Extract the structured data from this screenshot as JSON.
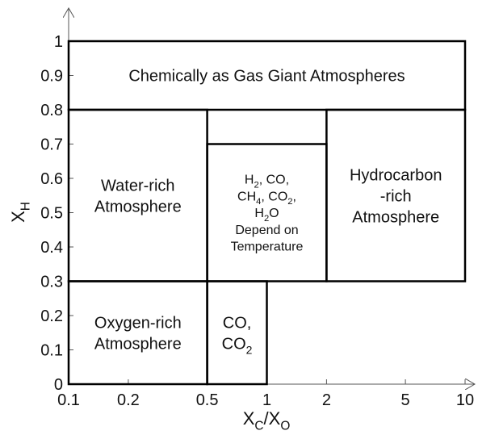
{
  "chart_data": {
    "type": "region",
    "x_label": [
      {
        "text": "X"
      },
      {
        "text": "C",
        "sub": true
      },
      {
        "text": "/X"
      },
      {
        "text": "O",
        "sub": true
      }
    ],
    "y_label": [
      {
        "text": "X"
      },
      {
        "text": "H",
        "sub": true
      }
    ],
    "xscale": "log",
    "xlim": [
      0.1,
      10
    ],
    "xticks": [
      0.1,
      0.2,
      0.5,
      1,
      2,
      5,
      10
    ],
    "ylim": [
      0,
      1
    ],
    "yticks": [
      0,
      0.1,
      0.2,
      0.3,
      0.4,
      0.5,
      0.6,
      0.7,
      0.8,
      0.9,
      1
    ],
    "regions": [
      {
        "x": [
          0.1,
          10
        ],
        "y": [
          0.8,
          1
        ],
        "size": 20,
        "lines": [
          [
            {
              "text": "Chemically as Gas Giant Atmospheres"
            }
          ]
        ]
      },
      {
        "x": [
          0.1,
          0.5
        ],
        "y": [
          0.3,
          0.8
        ],
        "size": 20,
        "lines": [
          [
            {
              "text": "Water-rich"
            }
          ],
          [
            {
              "text": "Atmosphere"
            }
          ]
        ]
      },
      {
        "x": [
          0.5,
          2
        ],
        "y": [
          0.3,
          0.7
        ],
        "size": 16,
        "lines": [
          [
            {
              "text": "H"
            },
            {
              "text": "2",
              "sub": true
            },
            {
              "text": ", CO,"
            }
          ],
          [
            {
              "text": "CH"
            },
            {
              "text": "4",
              "sub": true
            },
            {
              "text": ", CO"
            },
            {
              "text": "2",
              "sub": true
            },
            {
              "text": ","
            }
          ],
          [
            {
              "text": "H"
            },
            {
              "text": "2",
              "sub": true
            },
            {
              "text": "O"
            }
          ],
          [
            {
              "text": "Depend on"
            }
          ],
          [
            {
              "text": "Temperature"
            }
          ]
        ]
      },
      {
        "x": [
          2,
          10
        ],
        "y": [
          0.3,
          0.8
        ],
        "size": 20,
        "lines": [
          [
            {
              "text": "Hydrocarbon"
            }
          ],
          [
            {
              "text": "-rich"
            }
          ],
          [
            {
              "text": "Atmosphere"
            }
          ]
        ]
      },
      {
        "x": [
          0.1,
          0.5
        ],
        "y": [
          0,
          0.3
        ],
        "size": 20,
        "lines": [
          [
            {
              "text": "Oxygen-rich"
            }
          ],
          [
            {
              "text": "Atmosphere"
            }
          ]
        ]
      },
      {
        "x": [
          0.5,
          1
        ],
        "y": [
          0,
          0.3
        ],
        "size": 20,
        "lines": [
          [
            {
              "text": "CO,"
            }
          ],
          [
            {
              "text": "CO"
            },
            {
              "text": "2",
              "sub": true
            }
          ]
        ]
      }
    ]
  }
}
